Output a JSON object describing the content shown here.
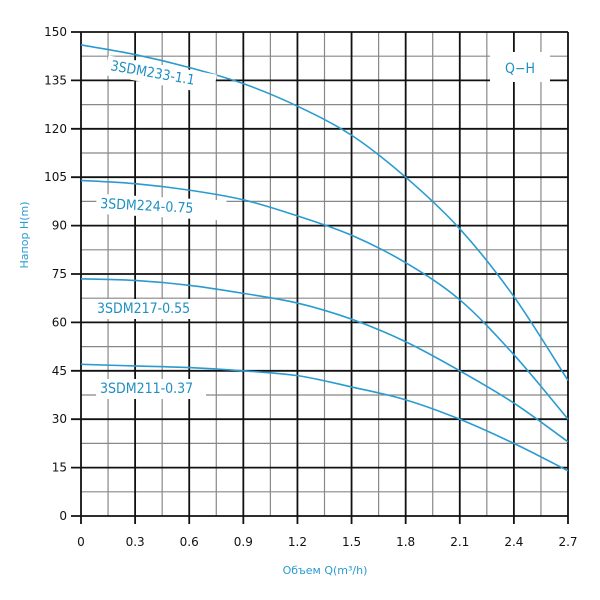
{
  "chart_data": {
    "type": "line",
    "title": "",
    "legend_box": "Q−H",
    "xlabel": "Объем Q(m³/h)",
    "ylabel": "Напор H(m)",
    "xlim": [
      0,
      2.7
    ],
    "ylim": [
      0,
      150
    ],
    "x_ticks": [
      "0",
      "0.3",
      "0.6",
      "0.9",
      "1.2",
      "1.5",
      "1.8",
      "2.1",
      "2.4",
      "2.7"
    ],
    "y_ticks": [
      "0",
      "15",
      "30",
      "45",
      "60",
      "75",
      "90",
      "105",
      "120",
      "135",
      "150"
    ],
    "grid": true,
    "line_color": "#2a9bd0",
    "x": [
      0,
      0.3,
      0.6,
      0.9,
      1.2,
      1.5,
      1.8,
      2.1,
      2.4,
      2.7
    ],
    "series": [
      {
        "name": "3SDM233-1.1",
        "values": [
          146,
          143,
          139,
          134,
          127,
          118,
          105,
          89,
          68,
          42
        ]
      },
      {
        "name": "3SDM224-0.75",
        "values": [
          104,
          103,
          101,
          98,
          93,
          87,
          78.5,
          67,
          50,
          30
        ]
      },
      {
        "name": "3SDM217-0.55",
        "values": [
          73.5,
          73,
          71.5,
          69,
          66,
          61,
          54,
          45,
          35,
          23
        ]
      },
      {
        "name": "3SDM211-0.37",
        "values": [
          47,
          46.5,
          46,
          45,
          43.5,
          40,
          36,
          30,
          22.5,
          14
        ]
      }
    ]
  }
}
